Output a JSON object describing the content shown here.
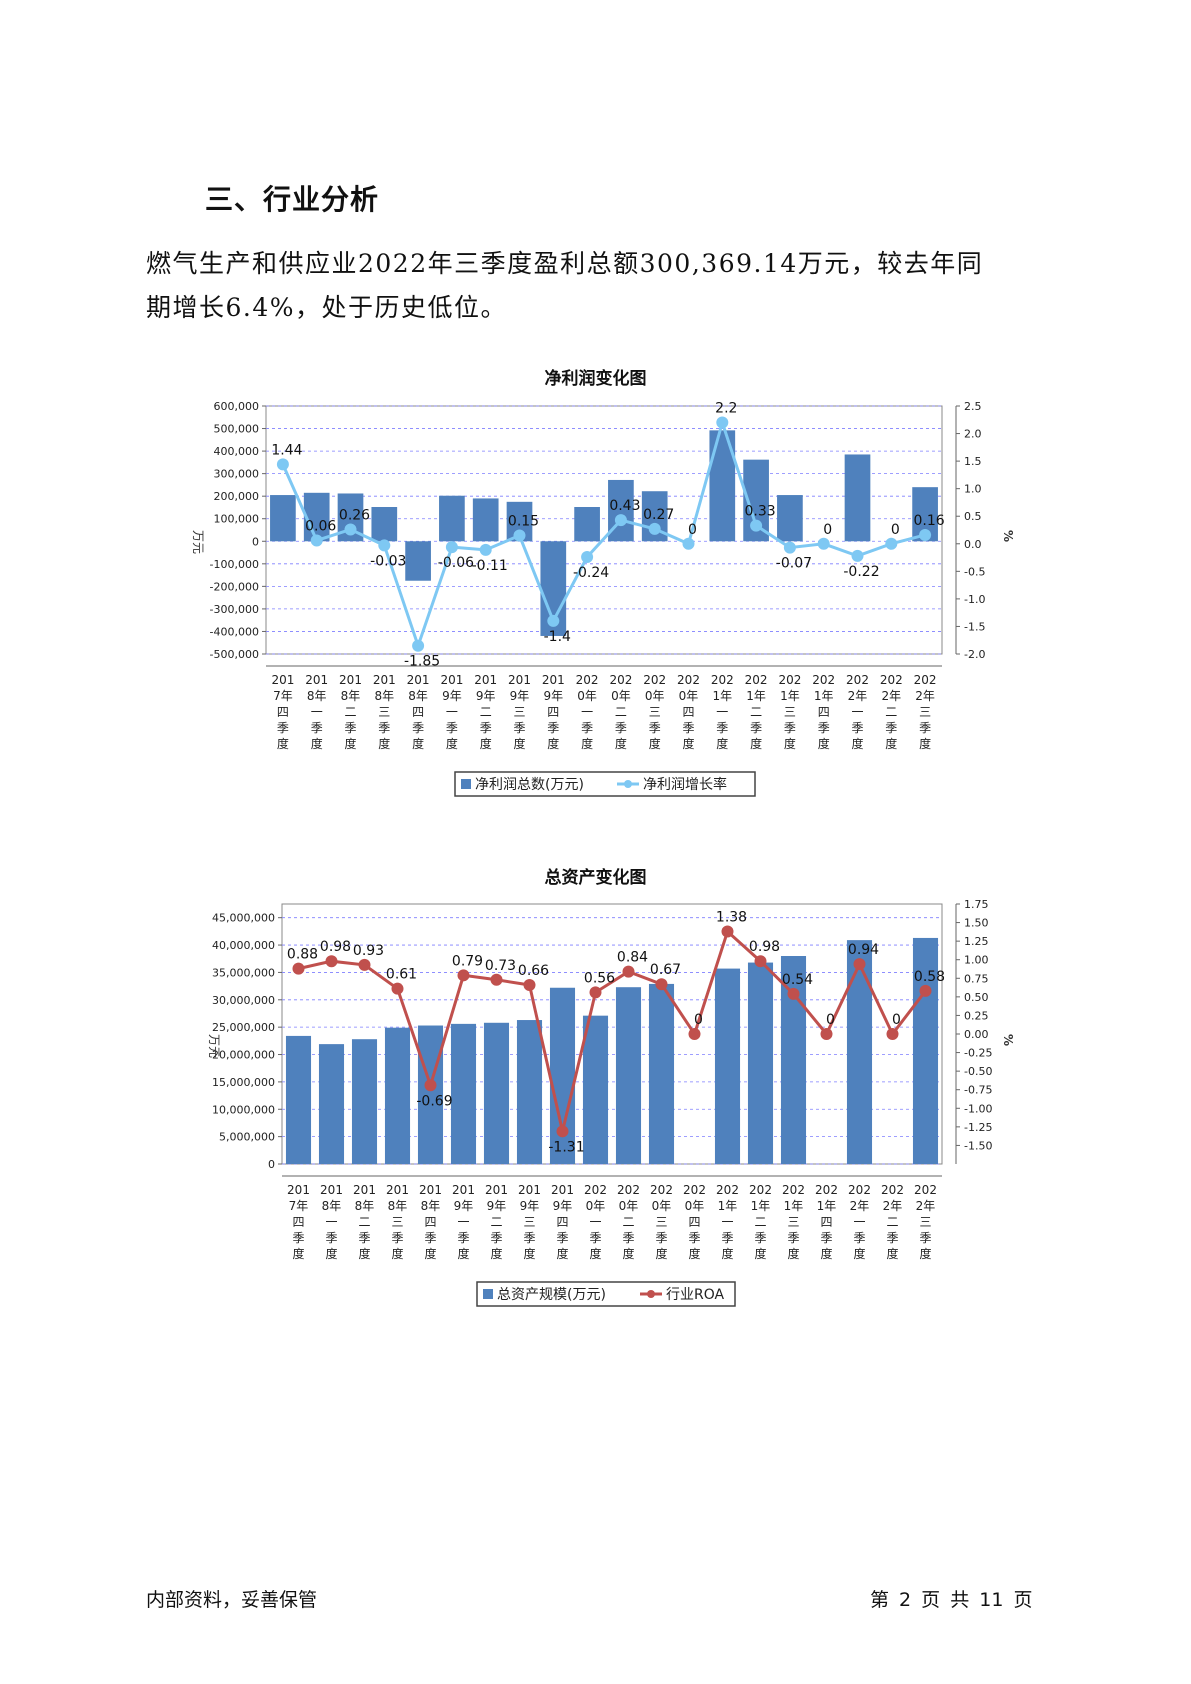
{
  "section_heading": "三、行业分析",
  "paragraph": {
    "line1": "燃气生产和供应业2022年三季度盈利总额300,369.14万元，较去年同",
    "line2": "期增长6.4%，处于历史低位。"
  },
  "footer": {
    "left": "内部资料，妥善保管",
    "right": "第 2 页  共 11 页"
  },
  "colors": {
    "bar": "#4f81bd",
    "line1": "#7ec8f3",
    "line2": "#c0504d",
    "grid": "#7f7fff"
  },
  "chart_data": [
    {
      "type": "bar+line",
      "title": "净利润变化图",
      "ylabel_left": "万元",
      "ylabel_right": "%",
      "ylim_left": [
        -500000,
        600000
      ],
      "yticks_left": [
        "600,000",
        "500,000",
        "400,000",
        "300,000",
        "200,000",
        "100,000",
        "0",
        "-100,000",
        "-200,000",
        "-300,000",
        "-400,000",
        "-500,000"
      ],
      "ylim_right": [
        -2.0,
        2.5
      ],
      "yticks_right": [
        "2.5",
        "2.0",
        "1.5",
        "1.0",
        "0.5",
        "0.0",
        "-0.5",
        "-1.0",
        "-1.5",
        "-2.0"
      ],
      "categories": [
        [
          "201",
          "7年",
          "四",
          "季",
          "度"
        ],
        [
          "201",
          "8年",
          "一",
          "季",
          "度"
        ],
        [
          "201",
          "8年",
          "二",
          "季",
          "度"
        ],
        [
          "201",
          "8年",
          "三",
          "季",
          "度"
        ],
        [
          "201",
          "8年",
          "四",
          "季",
          "度"
        ],
        [
          "201",
          "9年",
          "一",
          "季",
          "度"
        ],
        [
          "201",
          "9年",
          "二",
          "季",
          "度"
        ],
        [
          "201",
          "9年",
          "三",
          "季",
          "度"
        ],
        [
          "201",
          "9年",
          "四",
          "季",
          "度"
        ],
        [
          "202",
          "0年",
          "一",
          "季",
          "度"
        ],
        [
          "202",
          "0年",
          "二",
          "季",
          "度"
        ],
        [
          "202",
          "0年",
          "三",
          "季",
          "度"
        ],
        [
          "202",
          "0年",
          "四",
          "季",
          "度"
        ],
        [
          "202",
          "1年",
          "一",
          "季",
          "度"
        ],
        [
          "202",
          "1年",
          "二",
          "季",
          "度"
        ],
        [
          "202",
          "1年",
          "三",
          "季",
          "度"
        ],
        [
          "202",
          "1年",
          "四",
          "季",
          "度"
        ],
        [
          "202",
          "2年",
          "一",
          "季",
          "度"
        ],
        [
          "202",
          "2年",
          "二",
          "季",
          "度"
        ],
        [
          "202",
          "2年",
          "三",
          "季",
          "度"
        ]
      ],
      "bar_series": {
        "name": "净利润总数(万元)",
        "values": [
          205000,
          215000,
          212000,
          152000,
          -175000,
          202000,
          190000,
          175000,
          -420000,
          152000,
          272000,
          222000,
          0,
          492000,
          362000,
          205000,
          0,
          385000,
          0,
          240000
        ]
      },
      "line_series": {
        "name": "净利润增长率",
        "values": [
          1.44,
          0.06,
          0.26,
          -0.03,
          -1.85,
          -0.06,
          -0.11,
          0.15,
          -1.4,
          -0.24,
          0.43,
          0.27,
          0,
          2.2,
          0.33,
          -0.07,
          0,
          -0.22,
          0,
          0.16
        ],
        "labels": [
          "1.44",
          "0.06",
          "0.26",
          "-0.03",
          "-1.85",
          "-0.06",
          "-0.11",
          "0.15",
          "-1.4",
          "-0.24",
          "0.43",
          "0.27",
          "0",
          "2.2",
          "0.33",
          "-0.07",
          "0",
          "-0.22",
          "0",
          "0.16"
        ]
      },
      "grid": true,
      "legend_position": "bottom"
    },
    {
      "type": "bar+line",
      "title": "总资产变化图",
      "ylabel_left": "万元",
      "ylabel_right": "%",
      "ylim_left": [
        0,
        47500000
      ],
      "yticks_left": [
        "45,000,000",
        "40,000,000",
        "35,000,000",
        "30,000,000",
        "25,000,000",
        "20,000,000",
        "15,000,000",
        "10,000,000",
        "5,000,000",
        "0"
      ],
      "ylim_right": [
        -1.75,
        1.75
      ],
      "yticks_right": [
        "1.75",
        "1.50",
        "1.25",
        "1.00",
        "0.75",
        "0.50",
        "0.25",
        "0.00",
        "-0.25",
        "-0.50",
        "-0.75",
        "-1.00",
        "-1.25",
        "-1.50"
      ],
      "categories": [
        [
          "201",
          "7年",
          "四",
          "季",
          "度"
        ],
        [
          "201",
          "8年",
          "一",
          "季",
          "度"
        ],
        [
          "201",
          "8年",
          "二",
          "季",
          "度"
        ],
        [
          "201",
          "8年",
          "三",
          "季",
          "度"
        ],
        [
          "201",
          "8年",
          "四",
          "季",
          "度"
        ],
        [
          "201",
          "9年",
          "一",
          "季",
          "度"
        ],
        [
          "201",
          "9年",
          "二",
          "季",
          "度"
        ],
        [
          "201",
          "9年",
          "三",
          "季",
          "度"
        ],
        [
          "201",
          "9年",
          "四",
          "季",
          "度"
        ],
        [
          "202",
          "0年",
          "一",
          "季",
          "度"
        ],
        [
          "202",
          "0年",
          "二",
          "季",
          "度"
        ],
        [
          "202",
          "0年",
          "三",
          "季",
          "度"
        ],
        [
          "202",
          "0年",
          "四",
          "季",
          "度"
        ],
        [
          "202",
          "1年",
          "一",
          "季",
          "度"
        ],
        [
          "202",
          "1年",
          "二",
          "季",
          "度"
        ],
        [
          "202",
          "1年",
          "三",
          "季",
          "度"
        ],
        [
          "202",
          "1年",
          "四",
          "季",
          "度"
        ],
        [
          "202",
          "2年",
          "一",
          "季",
          "度"
        ],
        [
          "202",
          "2年",
          "二",
          "季",
          "度"
        ],
        [
          "202",
          "2年",
          "三",
          "季",
          "度"
        ]
      ],
      "bar_series": {
        "name": "总资产规模(万元)",
        "values": [
          23400000,
          21900000,
          22800000,
          24900000,
          25300000,
          25600000,
          25800000,
          26300000,
          32200000,
          27100000,
          32300000,
          32900000,
          0,
          35700000,
          36800000,
          38000000,
          0,
          40900000,
          0,
          41300000
        ]
      },
      "line_series": {
        "name": "行业ROA",
        "values": [
          0.88,
          0.98,
          0.93,
          0.61,
          -0.69,
          0.79,
          0.73,
          0.66,
          -1.31,
          0.56,
          0.84,
          0.67,
          0,
          1.38,
          0.98,
          0.54,
          0,
          0.94,
          0,
          0.58
        ],
        "labels": [
          "0.88",
          "0.98",
          "0.93",
          "0.61",
          "-0.69",
          "0.79",
          "0.73",
          "0.66",
          "-1.31",
          "0.56",
          "0.84",
          "0.67",
          "0",
          "1.38",
          "0.98",
          "0.54",
          "0",
          "0.94",
          "0",
          "0.58"
        ]
      },
      "grid": true,
      "legend_position": "bottom"
    }
  ]
}
